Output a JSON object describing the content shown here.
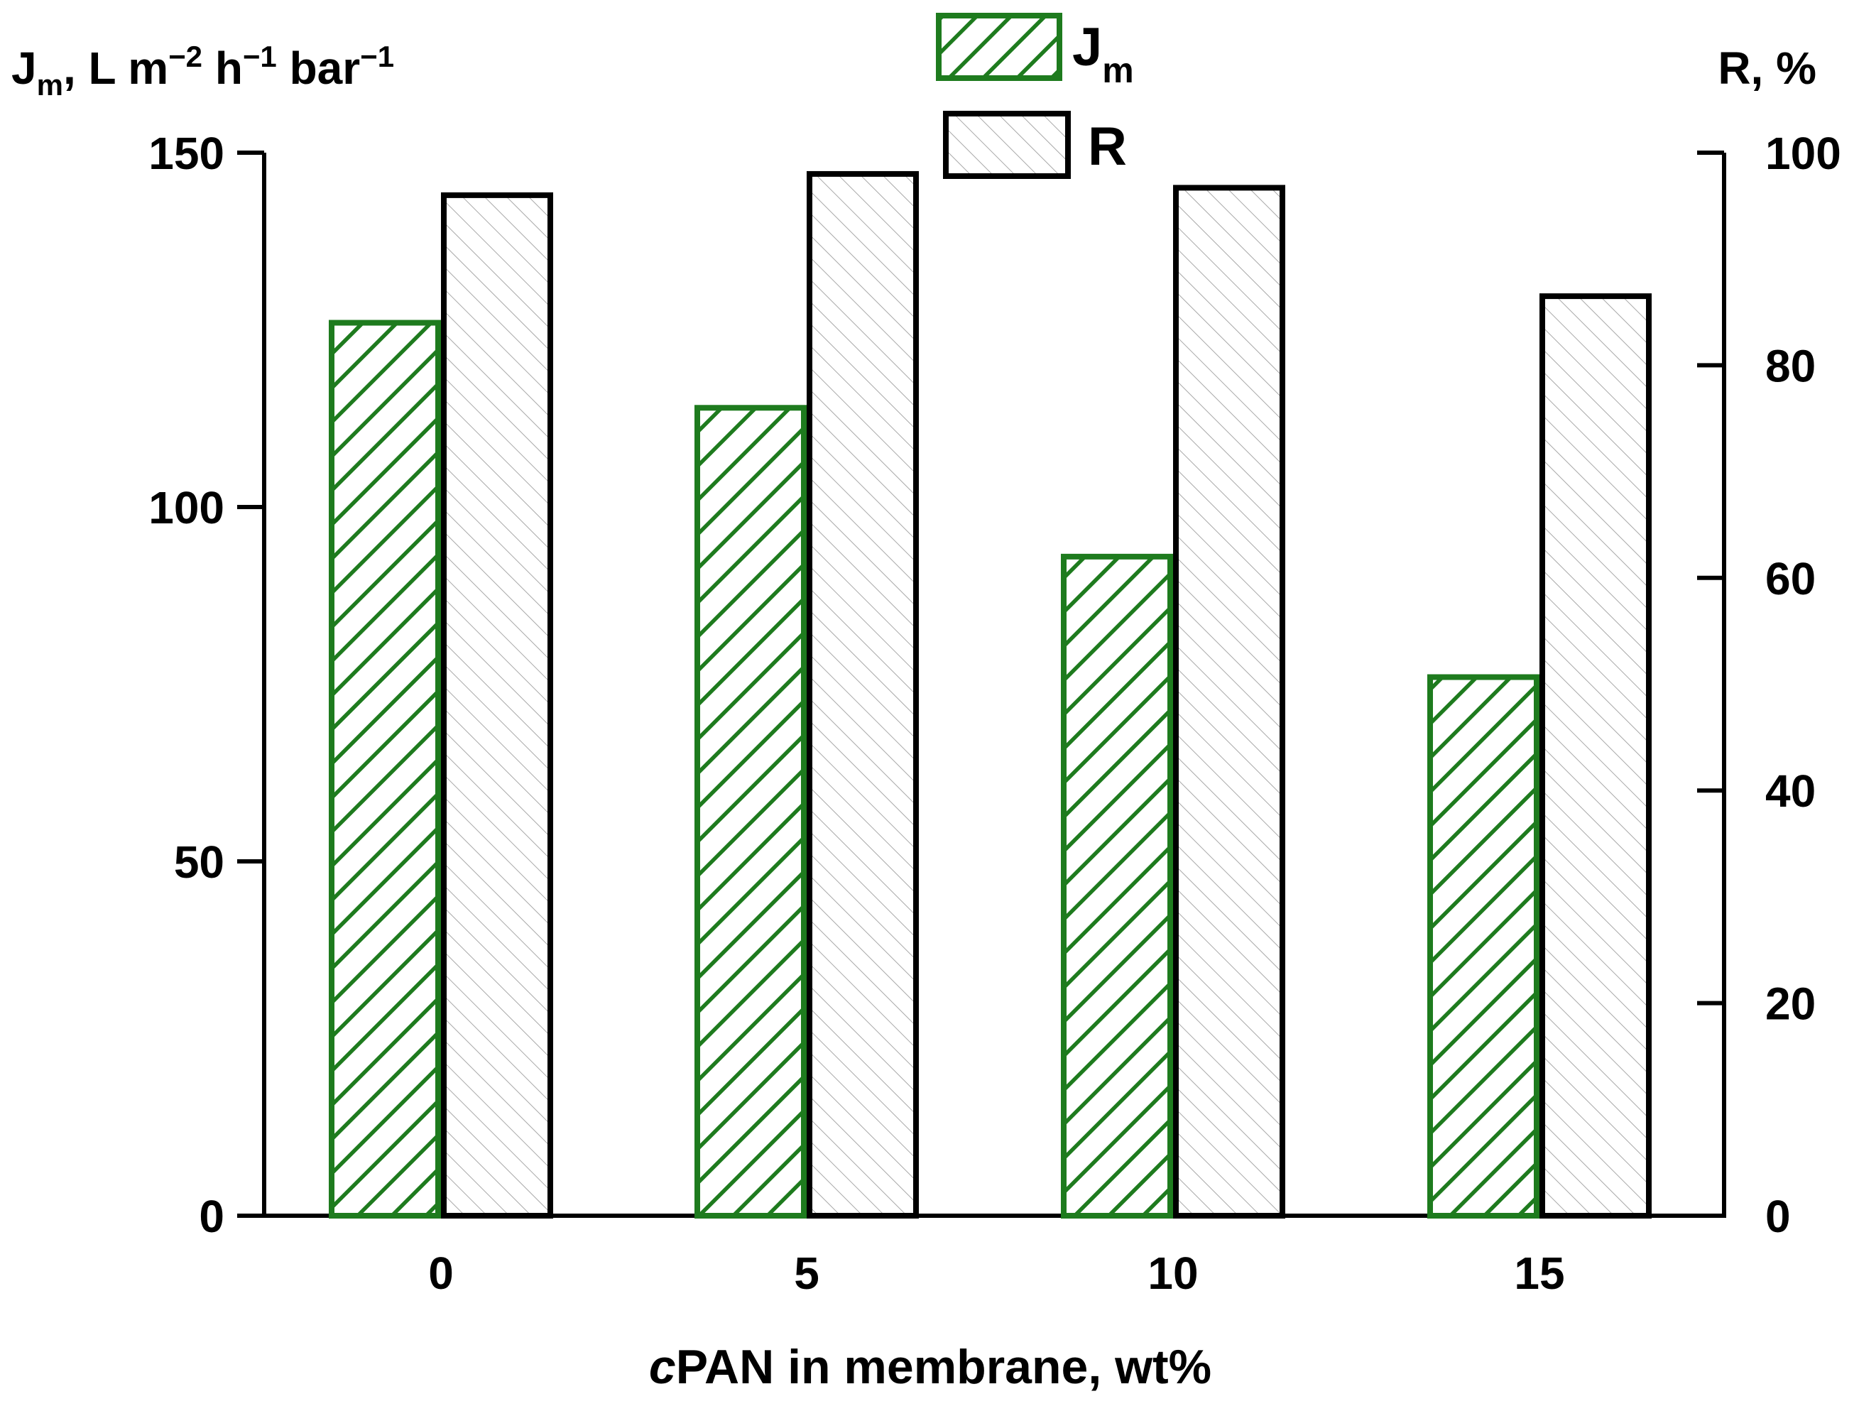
{
  "chart_data": {
    "type": "bar",
    "title": "",
    "categories": [
      "0",
      "5",
      "10",
      "15"
    ],
    "xlabel": {
      "italic": "c",
      "rest": "PAN in membrane, wt%"
    },
    "ylabel_left": {
      "main": "J",
      "sub": "m",
      "rest": ", L m",
      "sup1": "−2",
      "mid1": " h",
      "sup2": "−1",
      "mid2": " bar",
      "sup3": "−1"
    },
    "ylabel_right": "R, %",
    "y_left": {
      "min": 0,
      "max": 150,
      "ticks": [
        0,
        50,
        100,
        150
      ],
      "tick_labels": [
        "0",
        "50",
        "100",
        "150"
      ]
    },
    "y_right": {
      "min": 0,
      "max": 100,
      "ticks": [
        0,
        20,
        40,
        60,
        80,
        100
      ],
      "tick_labels": [
        "0",
        "20",
        "40",
        "60",
        "80",
        "100"
      ]
    },
    "series": [
      {
        "name": "Jm",
        "label_main": "J",
        "label_sub": "m",
        "axis": "left",
        "values": [
          126,
          114,
          93,
          76
        ],
        "color": "#1e7b1e",
        "hatch": "forward-diagonal"
      },
      {
        "name": "R",
        "label_main": "R",
        "label_sub": "",
        "axis": "right",
        "values": [
          96,
          98,
          96.7,
          86.5
        ],
        "color": "#000000",
        "hatch": "back-diagonal-gray"
      }
    ],
    "legend_position": "top-center",
    "grid": false
  }
}
